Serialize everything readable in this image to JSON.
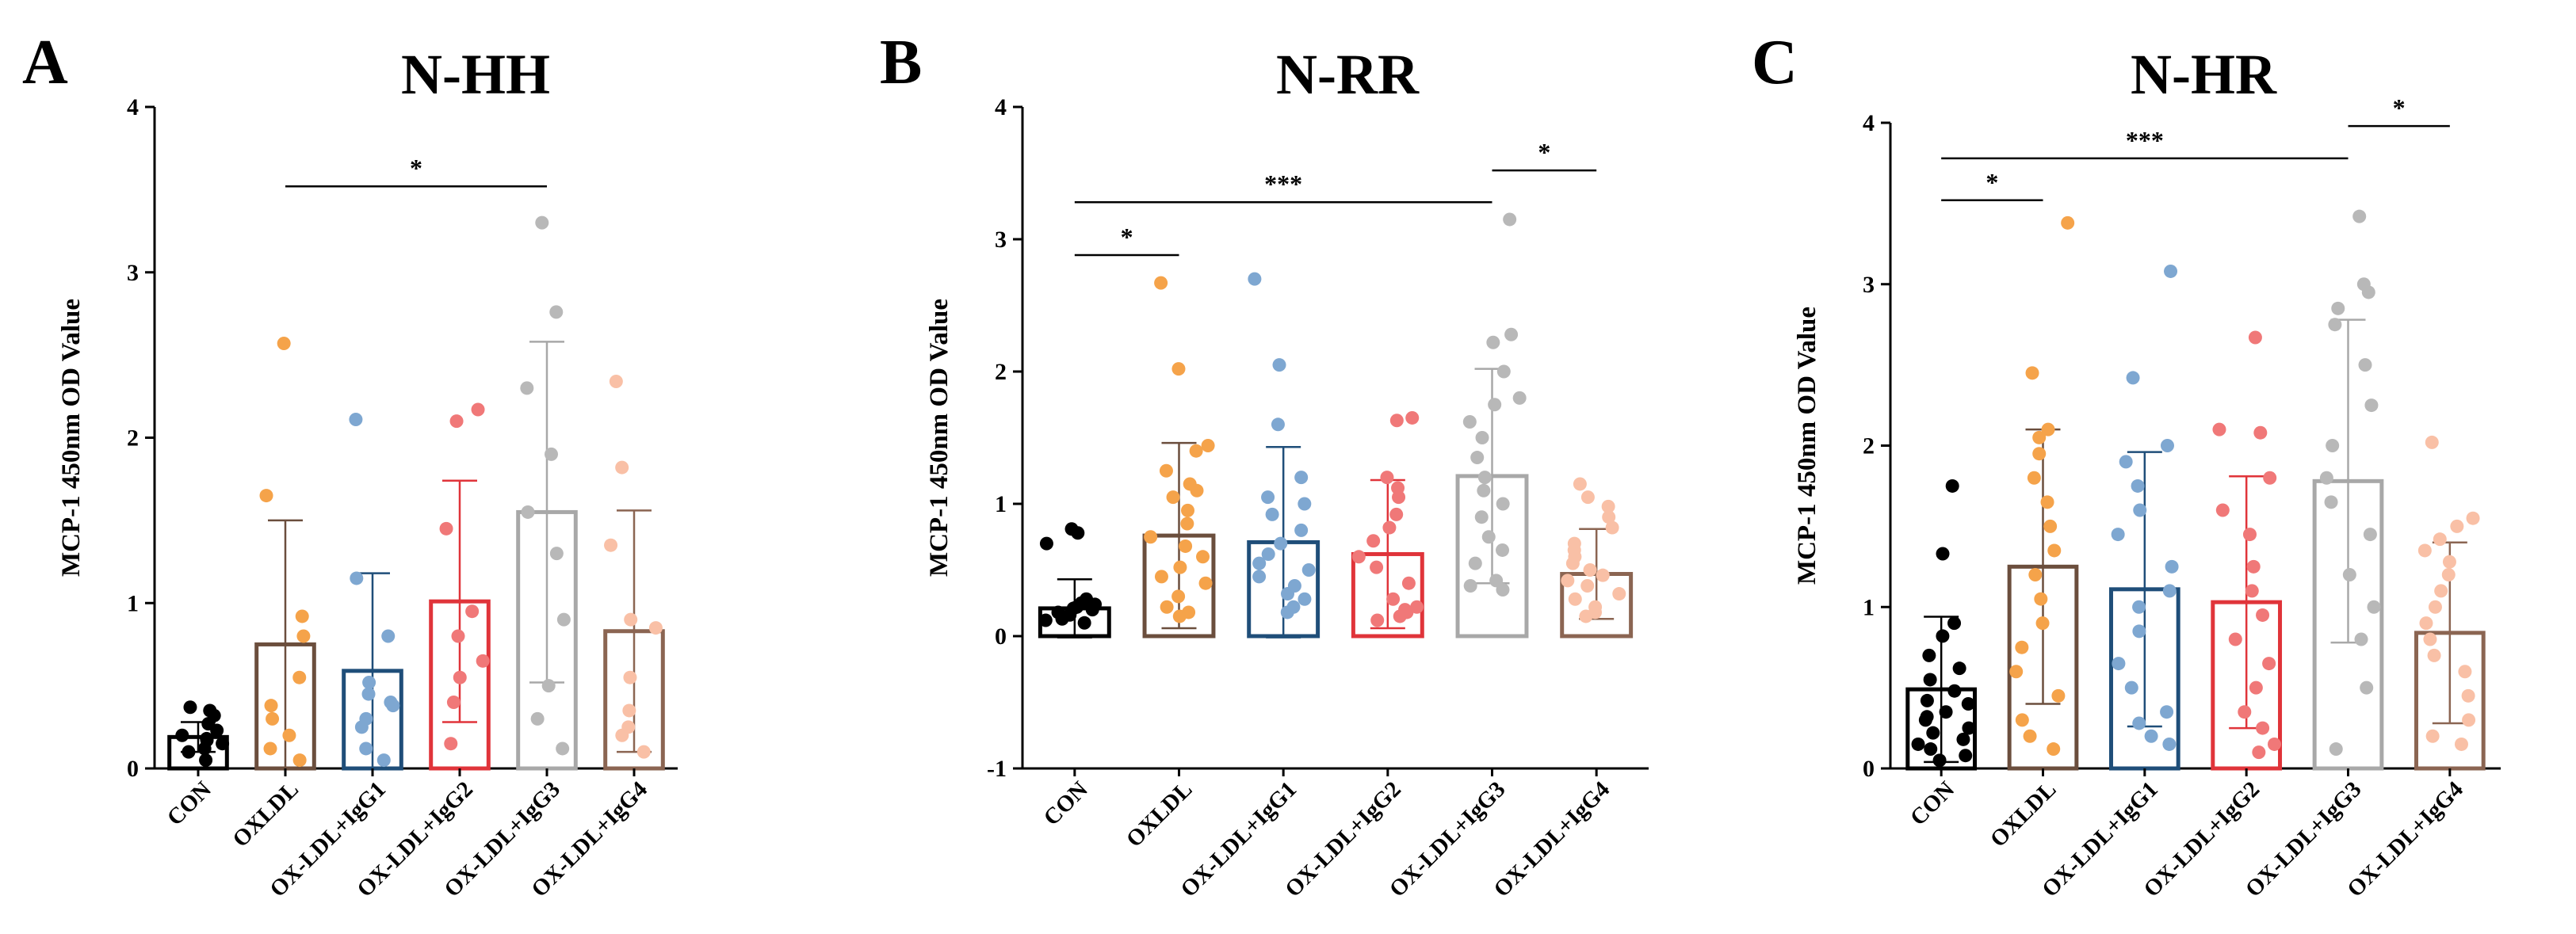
{
  "chart_data": [
    {
      "type": "bar",
      "panel_letter": "A",
      "title": "N-HH",
      "xlabel": "",
      "ylabel": "MCP-1 450nm OD Value",
      "ylim": [
        0,
        4
      ],
      "yticks": [
        0,
        1,
        2,
        3,
        4
      ],
      "categories": [
        "CON",
        "OXLDL",
        "OX-LDL+IgG1",
        "OX-LDL+IgG2",
        "OX-LDL+IgG3",
        "OX-LDL+IgG4"
      ],
      "bar_colors": [
        "#000000",
        "#6b4e3d",
        "#1f4e79",
        "#e0343a",
        "#a8a8a8",
        "#8b6552"
      ],
      "dot_colors": [
        "#000000",
        "#f5a34a",
        "#7ea7d1",
        "#f07878",
        "#b8b8b8",
        "#f9c0a6"
      ],
      "means": [
        0.19,
        0.75,
        0.59,
        1.01,
        1.55,
        0.83
      ],
      "sd": [
        0.09,
        0.75,
        0.59,
        0.73,
        1.03,
        0.73
      ],
      "points": [
        [
          0.05,
          0.1,
          0.12,
          0.15,
          0.17,
          0.18,
          0.2,
          0.23,
          0.27,
          0.32,
          0.35,
          0.37
        ],
        [
          0.05,
          0.12,
          0.2,
          0.3,
          0.38,
          0.55,
          0.8,
          0.92,
          1.65,
          2.57
        ],
        [
          0.05,
          0.12,
          0.25,
          0.3,
          0.38,
          0.4,
          0.45,
          0.52,
          0.8,
          1.15,
          2.11
        ],
        [
          0.15,
          0.4,
          0.55,
          0.65,
          0.8,
          0.95,
          1.45,
          2.1,
          2.17
        ],
        [
          0.12,
          0.3,
          0.5,
          0.9,
          1.3,
          1.55,
          1.9,
          2.3,
          2.76,
          3.3
        ],
        [
          0.1,
          0.2,
          0.25,
          0.35,
          0.55,
          0.85,
          0.9,
          1.35,
          1.82,
          2.34
        ]
      ],
      "significance": [
        {
          "from": 1,
          "to": 4,
          "label": "*",
          "y": 3.52
        }
      ]
    },
    {
      "type": "bar",
      "panel_letter": "B",
      "title": "N-RR",
      "xlabel": "",
      "ylabel": "MCP-1 450nm OD Value",
      "ylim": [
        -1,
        4
      ],
      "yticks": [
        -1,
        0,
        1,
        2,
        3,
        4
      ],
      "categories": [
        "CON",
        "OXLDL",
        "OX-LDL+IgG1",
        "OX-LDL+IgG2",
        "OX-LDL+IgG3",
        "OX-LDL+IgG4"
      ],
      "bar_colors": [
        "#000000",
        "#6b4e3d",
        "#1f4e79",
        "#e0343a",
        "#a8a8a8",
        "#8b6552"
      ],
      "dot_colors": [
        "#000000",
        "#f5a34a",
        "#7ea7d1",
        "#f07878",
        "#b8b8b8",
        "#f9c0a6"
      ],
      "means": [
        0.21,
        0.76,
        0.71,
        0.62,
        1.21,
        0.47
      ],
      "sd": [
        0.22,
        0.7,
        0.72,
        0.56,
        0.81,
        0.34
      ],
      "points": [
        [
          0.1,
          0.12,
          0.13,
          0.15,
          0.16,
          0.18,
          0.2,
          0.21,
          0.22,
          0.24,
          0.25,
          0.28,
          0.7,
          0.78,
          0.81
        ],
        [
          0.15,
          0.18,
          0.22,
          0.3,
          0.4,
          0.45,
          0.52,
          0.6,
          0.68,
          0.75,
          0.85,
          0.95,
          1.05,
          1.1,
          1.15,
          1.25,
          1.4,
          1.44,
          2.02,
          2.67
        ],
        [
          0.18,
          0.22,
          0.28,
          0.32,
          0.38,
          0.45,
          0.5,
          0.55,
          0.62,
          0.7,
          0.8,
          0.92,
          1.0,
          1.05,
          1.2,
          1.6,
          2.05,
          2.7
        ],
        [
          0.12,
          0.15,
          0.18,
          0.2,
          0.22,
          0.28,
          0.4,
          0.52,
          0.6,
          0.72,
          0.82,
          0.92,
          1.05,
          1.12,
          1.2,
          1.63,
          1.65
        ],
        [
          0.35,
          0.38,
          0.42,
          0.55,
          0.65,
          0.75,
          0.9,
          1.0,
          1.1,
          1.2,
          1.35,
          1.5,
          1.62,
          1.75,
          1.8,
          2.0,
          2.22,
          2.28,
          3.15
        ],
        [
          0.15,
          0.18,
          0.22,
          0.28,
          0.32,
          0.38,
          0.42,
          0.46,
          0.5,
          0.55,
          0.6,
          0.65,
          0.7,
          0.82,
          0.9,
          0.98,
          1.05,
          1.15
        ]
      ],
      "significance": [
        {
          "from": 0,
          "to": 1,
          "label": "*",
          "y": 2.88
        },
        {
          "from": 0,
          "to": 4,
          "label": "***",
          "y": 3.28
        },
        {
          "from": 4,
          "to": 5,
          "label": "*",
          "y": 3.52
        }
      ]
    },
    {
      "type": "bar",
      "panel_letter": "C",
      "title": "N-HR",
      "xlabel": "",
      "ylabel": "MCP-1 450nm OD Value",
      "ylim": [
        0,
        4
      ],
      "yticks": [
        0,
        1,
        2,
        3,
        4
      ],
      "categories": [
        "CON",
        "OXLDL",
        "OX-LDL+IgG1",
        "OX-LDL+IgG2",
        "OX-LDL+IgG3",
        "OX-LDL+IgG4"
      ],
      "bar_colors": [
        "#000000",
        "#6b4e3d",
        "#1f4e79",
        "#e0343a",
        "#a8a8a8",
        "#8b6552"
      ],
      "dot_colors": [
        "#000000",
        "#f5a34a",
        "#7ea7d1",
        "#f07878",
        "#b8b8b8",
        "#f9c0a6"
      ],
      "means": [
        0.49,
        1.25,
        1.11,
        1.03,
        1.78,
        0.84
      ],
      "sd": [
        0.45,
        0.85,
        0.85,
        0.78,
        1.0,
        0.56
      ],
      "points": [
        [
          0.05,
          0.08,
          0.12,
          0.15,
          0.18,
          0.22,
          0.25,
          0.3,
          0.32,
          0.35,
          0.4,
          0.42,
          0.48,
          0.55,
          0.62,
          0.7,
          0.82,
          0.9,
          1.33,
          1.75
        ],
        [
          0.12,
          0.2,
          0.3,
          0.45,
          0.6,
          0.75,
          0.9,
          1.05,
          1.2,
          1.35,
          1.5,
          1.65,
          1.8,
          1.95,
          2.05,
          2.1,
          2.45,
          3.38
        ],
        [
          0.15,
          0.2,
          0.28,
          0.35,
          0.5,
          0.65,
          0.85,
          1.0,
          1.1,
          1.25,
          1.45,
          1.6,
          1.75,
          1.9,
          2.0,
          2.42,
          3.08
        ],
        [
          0.1,
          0.15,
          0.25,
          0.35,
          0.5,
          0.65,
          0.8,
          0.95,
          1.1,
          1.25,
          1.45,
          1.6,
          1.8,
          2.08,
          2.1,
          2.67
        ],
        [
          0.12,
          0.5,
          0.8,
          1.0,
          1.2,
          1.45,
          1.65,
          1.8,
          2.0,
          2.25,
          2.5,
          2.75,
          2.85,
          2.95,
          3.0,
          3.42
        ],
        [
          0.15,
          0.2,
          0.3,
          0.45,
          0.6,
          0.7,
          0.8,
          0.9,
          1.0,
          1.1,
          1.2,
          1.28,
          1.35,
          1.42,
          1.5,
          1.55,
          2.02
        ]
      ],
      "significance": [
        {
          "from": 0,
          "to": 1,
          "label": "*",
          "y": 3.52
        },
        {
          "from": 0,
          "to": 4,
          "label": "***",
          "y": 3.78
        },
        {
          "from": 4,
          "to": 5,
          "label": "*",
          "y": 3.98
        }
      ]
    }
  ]
}
